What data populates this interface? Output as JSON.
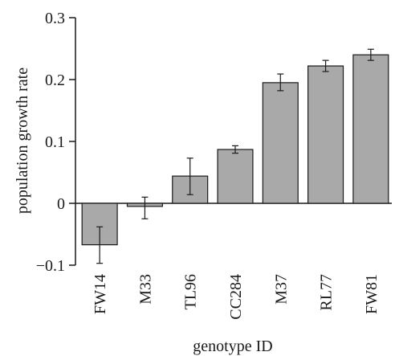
{
  "chart_data": {
    "type": "bar",
    "title": "",
    "xlabel": "genotype ID",
    "ylabel": "population growth rate",
    "categories": [
      "FW14",
      "M33",
      "TL96",
      "CC284",
      "M37",
      "RL77",
      "FW81"
    ],
    "values": [
      -0.067,
      -0.005,
      0.044,
      0.087,
      0.195,
      0.222,
      0.24
    ],
    "error_low": [
      -0.097,
      -0.025,
      0.014,
      0.081,
      0.182,
      0.213,
      0.231
    ],
    "error_high": [
      -0.038,
      0.01,
      0.073,
      0.093,
      0.209,
      0.231,
      0.249
    ],
    "ylim": [
      -0.1,
      0.3
    ],
    "yticks": [
      -0.1,
      0,
      0.1,
      0.2,
      0.3
    ],
    "ytick_labels": [
      "−0.1",
      "0",
      "0.1",
      "0.2",
      "0.3"
    ],
    "grid": false,
    "legend": "none",
    "bar_color": "#a9a9a9",
    "edge_color": "#1a1a1a"
  }
}
